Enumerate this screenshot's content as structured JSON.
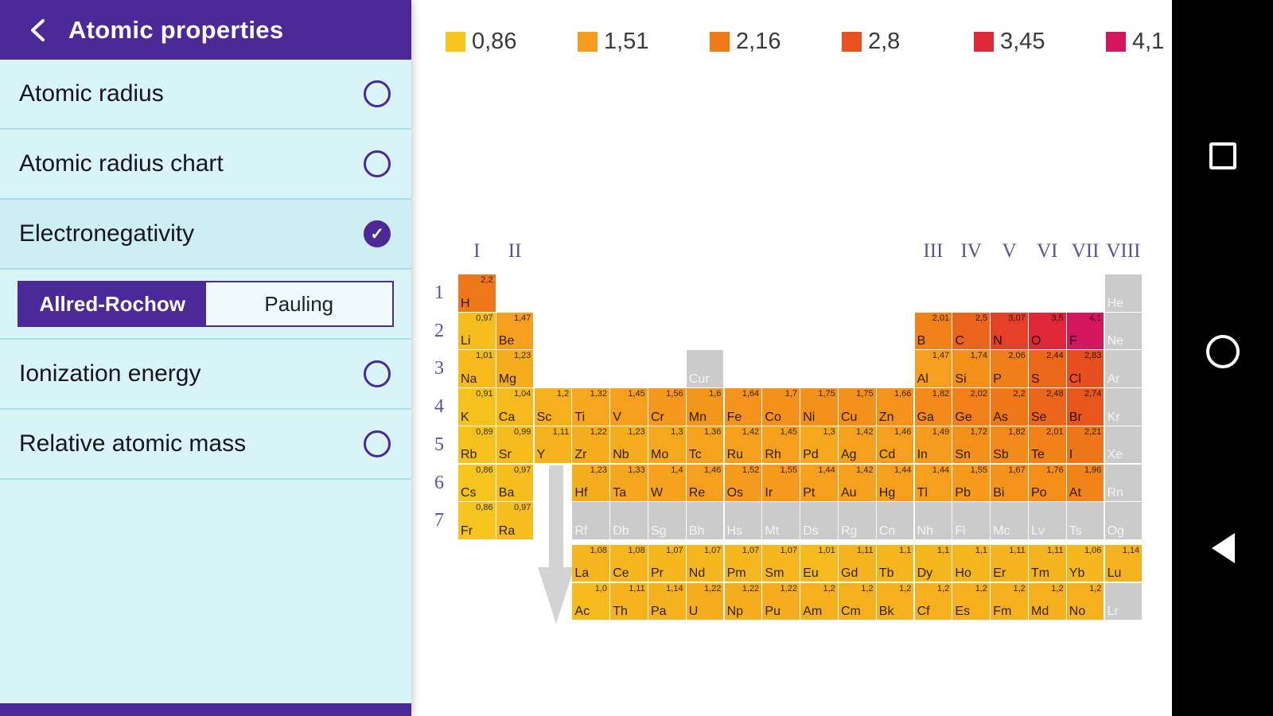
{
  "sidebar": {
    "title": "Atomic properties",
    "items": [
      {
        "label": "Atomic radius",
        "checked": false
      },
      {
        "label": "Atomic radius chart",
        "checked": false
      },
      {
        "label": "Electronegativity",
        "checked": true
      },
      {
        "label": "Ionization energy",
        "checked": false
      },
      {
        "label": "Relative atomic mass",
        "checked": false
      }
    ],
    "scale_options": {
      "options": [
        "Allred-Rochow",
        "Pauling"
      ],
      "selected": "Allred-Rochow"
    }
  },
  "legend": [
    {
      "value": "0,86",
      "color": "#f5c41d"
    },
    {
      "value": "1,51",
      "color": "#f69b1d"
    },
    {
      "value": "2,16",
      "color": "#ee7a18"
    },
    {
      "value": "2,8",
      "color": "#e7511e"
    },
    {
      "value": "3,45",
      "color": "#e02936"
    },
    {
      "value": "4,1",
      "color": "#d5155e"
    }
  ],
  "chart_data": {
    "type": "heatmap",
    "title": "Electronegativity",
    "scale": "Allred-Rochow",
    "value_range": [
      0.86,
      4.1
    ],
    "legend_values": [
      "0,86",
      "1,51",
      "2,16",
      "2,8",
      "3,45",
      "4,1"
    ],
    "color_stops": [
      [
        "0,86",
        "#f5c41d"
      ],
      [
        "1,51",
        "#f69b1d"
      ],
      [
        "2,16",
        "#ee7a18"
      ],
      [
        "2,8",
        "#e7511e"
      ],
      [
        "3,45",
        "#e02936"
      ],
      [
        "4,1",
        "#d5155e"
      ]
    ],
    "no_data_color": "#cbcbcb",
    "group_labels": [
      {
        "label": "I",
        "col": 1
      },
      {
        "label": "II",
        "col": 2
      },
      {
        "label": "III",
        "col": 13
      },
      {
        "label": "IV",
        "col": 14
      },
      {
        "label": "V",
        "col": 15
      },
      {
        "label": "VI",
        "col": 16
      },
      {
        "label": "VII",
        "col": 17
      },
      {
        "label": "VIII",
        "col": 18
      }
    ],
    "period_labels": [
      "1",
      "2",
      "3",
      "4",
      "5",
      "6",
      "7"
    ],
    "elements": [
      {
        "sym": "H",
        "row": 1,
        "col": 1,
        "val": "2,2"
      },
      {
        "sym": "He",
        "row": 1,
        "col": 18,
        "val": null
      },
      {
        "sym": "Li",
        "row": 2,
        "col": 1,
        "val": "0,97"
      },
      {
        "sym": "Be",
        "row": 2,
        "col": 2,
        "val": "1,47"
      },
      {
        "sym": "B",
        "row": 2,
        "col": 13,
        "val": "2,01"
      },
      {
        "sym": "C",
        "row": 2,
        "col": 14,
        "val": "2,5"
      },
      {
        "sym": "N",
        "row": 2,
        "col": 15,
        "val": "3,07"
      },
      {
        "sym": "O",
        "row": 2,
        "col": 16,
        "val": "3,5"
      },
      {
        "sym": "F",
        "row": 2,
        "col": 17,
        "val": "4,1"
      },
      {
        "sym": "Ne",
        "row": 2,
        "col": 18,
        "val": null
      },
      {
        "sym": "Na",
        "row": 3,
        "col": 1,
        "val": "1,01"
      },
      {
        "sym": "Mg",
        "row": 3,
        "col": 2,
        "val": "1,23"
      },
      {
        "sym": "Cur",
        "row": 3,
        "col": 7,
        "val": null
      },
      {
        "sym": "Al",
        "row": 3,
        "col": 13,
        "val": "1,47"
      },
      {
        "sym": "Si",
        "row": 3,
        "col": 14,
        "val": "1,74"
      },
      {
        "sym": "P",
        "row": 3,
        "col": 15,
        "val": "2,06"
      },
      {
        "sym": "S",
        "row": 3,
        "col": 16,
        "val": "2,44"
      },
      {
        "sym": "Cl",
        "row": 3,
        "col": 17,
        "val": "2,83"
      },
      {
        "sym": "Ar",
        "row": 3,
        "col": 18,
        "val": null
      },
      {
        "sym": "K",
        "row": 4,
        "col": 1,
        "val": "0,91"
      },
      {
        "sym": "Ca",
        "row": 4,
        "col": 2,
        "val": "1,04"
      },
      {
        "sym": "Sc",
        "row": 4,
        "col": 3,
        "val": "1,2"
      },
      {
        "sym": "Ti",
        "row": 4,
        "col": 4,
        "val": "1,32"
      },
      {
        "sym": "V",
        "row": 4,
        "col": 5,
        "val": "1,45"
      },
      {
        "sym": "Cr",
        "row": 4,
        "col": 6,
        "val": "1,56"
      },
      {
        "sym": "Mn",
        "row": 4,
        "col": 7,
        "val": "1,6"
      },
      {
        "sym": "Fe",
        "row": 4,
        "col": 8,
        "val": "1,64"
      },
      {
        "sym": "Co",
        "row": 4,
        "col": 9,
        "val": "1,7"
      },
      {
        "sym": "Ni",
        "row": 4,
        "col": 10,
        "val": "1,75"
      },
      {
        "sym": "Cu",
        "row": 4,
        "col": 11,
        "val": "1,75"
      },
      {
        "sym": "Zn",
        "row": 4,
        "col": 12,
        "val": "1,66"
      },
      {
        "sym": "Ga",
        "row": 4,
        "col": 13,
        "val": "1,82"
      },
      {
        "sym": "Ge",
        "row": 4,
        "col": 14,
        "val": "2,02"
      },
      {
        "sym": "As",
        "row": 4,
        "col": 15,
        "val": "2,2"
      },
      {
        "sym": "Se",
        "row": 4,
        "col": 16,
        "val": "2,48"
      },
      {
        "sym": "Br",
        "row": 4,
        "col": 17,
        "val": "2,74"
      },
      {
        "sym": "Kr",
        "row": 4,
        "col": 18,
        "val": null
      },
      {
        "sym": "Rb",
        "row": 5,
        "col": 1,
        "val": "0,89"
      },
      {
        "sym": "Sr",
        "row": 5,
        "col": 2,
        "val": "0,99"
      },
      {
        "sym": "Y",
        "row": 5,
        "col": 3,
        "val": "1,11"
      },
      {
        "sym": "Zr",
        "row": 5,
        "col": 4,
        "val": "1,22"
      },
      {
        "sym": "Nb",
        "row": 5,
        "col": 5,
        "val": "1,23"
      },
      {
        "sym": "Mo",
        "row": 5,
        "col": 6,
        "val": "1,3"
      },
      {
        "sym": "Tc",
        "row": 5,
        "col": 7,
        "val": "1,36"
      },
      {
        "sym": "Ru",
        "row": 5,
        "col": 8,
        "val": "1,42"
      },
      {
        "sym": "Rh",
        "row": 5,
        "col": 9,
        "val": "1,45"
      },
      {
        "sym": "Pd",
        "row": 5,
        "col": 10,
        "val": "1,3"
      },
      {
        "sym": "Ag",
        "row": 5,
        "col": 11,
        "val": "1,42"
      },
      {
        "sym": "Cd",
        "row": 5,
        "col": 12,
        "val": "1,46"
      },
      {
        "sym": "In",
        "row": 5,
        "col": 13,
        "val": "1,49"
      },
      {
        "sym": "Sn",
        "row": 5,
        "col": 14,
        "val": "1,72"
      },
      {
        "sym": "Sb",
        "row": 5,
        "col": 15,
        "val": "1,82"
      },
      {
        "sym": "Te",
        "row": 5,
        "col": 16,
        "val": "2,01"
      },
      {
        "sym": "I",
        "row": 5,
        "col": 17,
        "val": "2,21"
      },
      {
        "sym": "Xe",
        "row": 5,
        "col": 18,
        "val": null
      },
      {
        "sym": "Cs",
        "row": 6,
        "col": 1,
        "val": "0,86"
      },
      {
        "sym": "Ba",
        "row": 6,
        "col": 2,
        "val": "0,97"
      },
      {
        "sym": "Hf",
        "row": 6,
        "col": 4,
        "val": "1,23"
      },
      {
        "sym": "Ta",
        "row": 6,
        "col": 5,
        "val": "1,33"
      },
      {
        "sym": "W",
        "row": 6,
        "col": 6,
        "val": "1,4"
      },
      {
        "sym": "Re",
        "row": 6,
        "col": 7,
        "val": "1,46"
      },
      {
        "sym": "Os",
        "row": 6,
        "col": 8,
        "val": "1,52"
      },
      {
        "sym": "Ir",
        "row": 6,
        "col": 9,
        "val": "1,55"
      },
      {
        "sym": "Pt",
        "row": 6,
        "col": 10,
        "val": "1,44"
      },
      {
        "sym": "Au",
        "row": 6,
        "col": 11,
        "val": "1,42"
      },
      {
        "sym": "Hg",
        "row": 6,
        "col": 12,
        "val": "1,44"
      },
      {
        "sym": "Tl",
        "row": 6,
        "col": 13,
        "val": "1,44"
      },
      {
        "sym": "Pb",
        "row": 6,
        "col": 14,
        "val": "1,55"
      },
      {
        "sym": "Bi",
        "row": 6,
        "col": 15,
        "val": "1,67"
      },
      {
        "sym": "Po",
        "row": 6,
        "col": 16,
        "val": "1,76"
      },
      {
        "sym": "At",
        "row": 6,
        "col": 17,
        "val": "1,96"
      },
      {
        "sym": "Rn",
        "row": 6,
        "col": 18,
        "val": null
      },
      {
        "sym": "Fr",
        "row": 7,
        "col": 1,
        "val": "0,86"
      },
      {
        "sym": "Ra",
        "row": 7,
        "col": 2,
        "val": "0,97"
      },
      {
        "sym": "Rf",
        "row": 7,
        "col": 4,
        "val": null
      },
      {
        "sym": "Db",
        "row": 7,
        "col": 5,
        "val": null
      },
      {
        "sym": "Sg",
        "row": 7,
        "col": 6,
        "val": null
      },
      {
        "sym": "Bh",
        "row": 7,
        "col": 7,
        "val": null
      },
      {
        "sym": "Hs",
        "row": 7,
        "col": 8,
        "val": null
      },
      {
        "sym": "Mt",
        "row": 7,
        "col": 9,
        "val": null
      },
      {
        "sym": "Ds",
        "row": 7,
        "col": 10,
        "val": null
      },
      {
        "sym": "Rg",
        "row": 7,
        "col": 11,
        "val": null
      },
      {
        "sym": "Cn",
        "row": 7,
        "col": 12,
        "val": null
      },
      {
        "sym": "Nh",
        "row": 7,
        "col": 13,
        "val": null
      },
      {
        "sym": "Fl",
        "row": 7,
        "col": 14,
        "val": null
      },
      {
        "sym": "Mc",
        "row": 7,
        "col": 15,
        "val": null
      },
      {
        "sym": "Lv",
        "row": 7,
        "col": 16,
        "val": null
      },
      {
        "sym": "Ts",
        "row": 7,
        "col": 17,
        "val": null
      },
      {
        "sym": "Og",
        "row": 7,
        "col": 18,
        "val": null
      },
      {
        "sym": "La",
        "row": 8,
        "col": 4,
        "val": "1,08"
      },
      {
        "sym": "Ce",
        "row": 8,
        "col": 5,
        "val": "1,08"
      },
      {
        "sym": "Pr",
        "row": 8,
        "col": 6,
        "val": "1,07"
      },
      {
        "sym": "Nd",
        "row": 8,
        "col": 7,
        "val": "1,07"
      },
      {
        "sym": "Pm",
        "row": 8,
        "col": 8,
        "val": "1,07"
      },
      {
        "sym": "Sm",
        "row": 8,
        "col": 9,
        "val": "1,07"
      },
      {
        "sym": "Eu",
        "row": 8,
        "col": 10,
        "val": "1,01"
      },
      {
        "sym": "Gd",
        "row": 8,
        "col": 11,
        "val": "1,11"
      },
      {
        "sym": "Tb",
        "row": 8,
        "col": 12,
        "val": "1,1"
      },
      {
        "sym": "Dy",
        "row": 8,
        "col": 13,
        "val": "1,1"
      },
      {
        "sym": "Ho",
        "row": 8,
        "col": 14,
        "val": "1,1"
      },
      {
        "sym": "Er",
        "row": 8,
        "col": 15,
        "val": "1,11"
      },
      {
        "sym": "Tm",
        "row": 8,
        "col": 16,
        "val": "1,11"
      },
      {
        "sym": "Yb",
        "row": 8,
        "col": 17,
        "val": "1,06"
      },
      {
        "sym": "Lu",
        "row": 8,
        "col": 18,
        "val": "1,14"
      },
      {
        "sym": "Ac",
        "row": 9,
        "col": 4,
        "val": "1,0"
      },
      {
        "sym": "Th",
        "row": 9,
        "col": 5,
        "val": "1,11"
      },
      {
        "sym": "Pa",
        "row": 9,
        "col": 6,
        "val": "1,14"
      },
      {
        "sym": "U",
        "row": 9,
        "col": 7,
        "val": "1,22"
      },
      {
        "sym": "Np",
        "row": 9,
        "col": 8,
        "val": "1,22"
      },
      {
        "sym": "Pu",
        "row": 9,
        "col": 9,
        "val": "1,22"
      },
      {
        "sym": "Am",
        "row": 9,
        "col": 10,
        "val": "1,2"
      },
      {
        "sym": "Cm",
        "row": 9,
        "col": 11,
        "val": "1,2"
      },
      {
        "sym": "Bk",
        "row": 9,
        "col": 12,
        "val": "1,2"
      },
      {
        "sym": "Cf",
        "row": 9,
        "col": 13,
        "val": "1,2"
      },
      {
        "sym": "Es",
        "row": 9,
        "col": 14,
        "val": "1,2"
      },
      {
        "sym": "Fm",
        "row": 9,
        "col": 15,
        "val": "1,2"
      },
      {
        "sym": "Md",
        "row": 9,
        "col": 16,
        "val": "1,2"
      },
      {
        "sym": "No",
        "row": 9,
        "col": 17,
        "val": "1,2"
      },
      {
        "sym": "Lr",
        "row": 9,
        "col": 18,
        "val": null
      }
    ]
  },
  "navbar": {
    "buttons": [
      "recents",
      "home",
      "back"
    ]
  }
}
